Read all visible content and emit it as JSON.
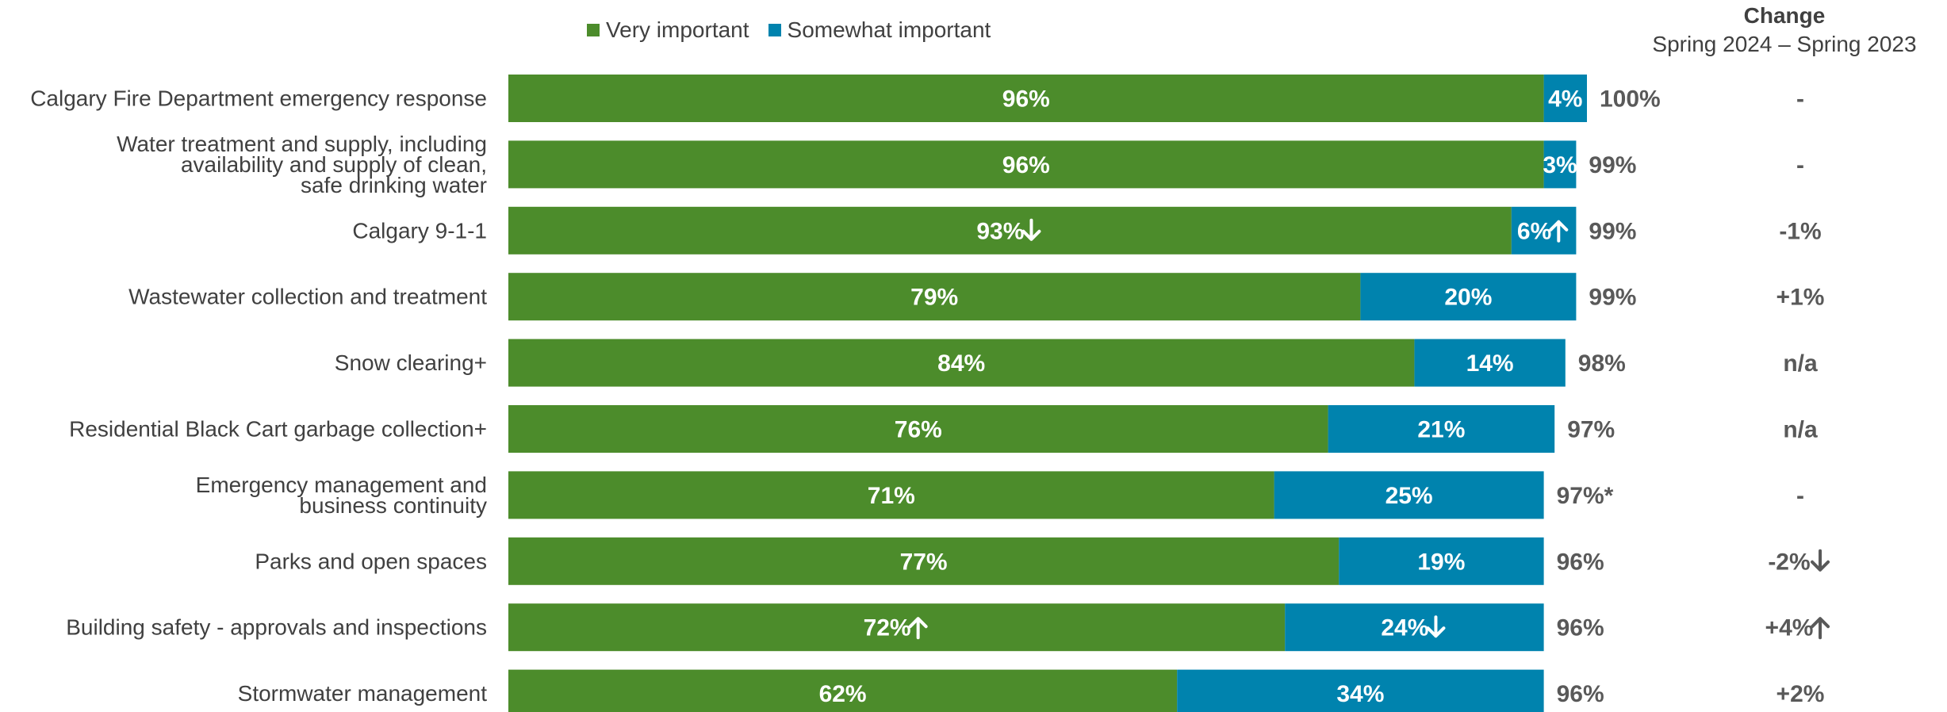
{
  "legend": [
    {
      "label": "Very important",
      "color": "#4C8C2B"
    },
    {
      "label": "Somewhat important",
      "color": "#0083AE"
    }
  ],
  "change_header": {
    "title": "Change",
    "subtitle": "Spring 2024 – Spring 2023"
  },
  "chart_data": {
    "type": "bar",
    "orientation": "horizontal",
    "stacked": true,
    "xlim": [
      0,
      100
    ],
    "categories": [
      "Calgary Fire Department emergency response",
      "Water treatment and supply, including availability and supply of clean, safe drinking water",
      "Calgary 9-1-1",
      "Wastewater collection and treatment",
      "Snow clearing+",
      "Residential Black Cart garbage collection+",
      "Emergency management and business continuity",
      "Parks and open spaces",
      "Building safety - approvals and inspections",
      "Stormwater management"
    ],
    "category_label_lines": [
      [
        "Calgary Fire Department emergency response"
      ],
      [
        "Water treatment and supply, including",
        "availability and supply of clean,",
        "safe drinking water"
      ],
      [
        "Calgary 9-1-1"
      ],
      [
        "Wastewater collection and treatment"
      ],
      [
        "Snow clearing+"
      ],
      [
        "Residential Black Cart garbage collection+"
      ],
      [
        "Emergency management and",
        "business continuity"
      ],
      [
        "Parks and open spaces"
      ],
      [
        "Building safety - approvals and inspections"
      ],
      [
        "Stormwater management"
      ]
    ],
    "series": [
      {
        "name": "Very important",
        "color": "#4C8C2B",
        "values": [
          96,
          96,
          93,
          79,
          84,
          76,
          71,
          77,
          72,
          62
        ],
        "labels": [
          "96%",
          "96%",
          "93%",
          "79%",
          "84%",
          "76%",
          "71%",
          "77%",
          "72%",
          "62%"
        ],
        "sig": [
          "",
          "",
          "down",
          "",
          "",
          "",
          "",
          "",
          "up",
          ""
        ]
      },
      {
        "name": "Somewhat important",
        "color": "#0083AE",
        "values": [
          4,
          3,
          6,
          20,
          14,
          21,
          25,
          19,
          24,
          34
        ],
        "labels": [
          "4%",
          "3%",
          "6%",
          "20%",
          "14%",
          "21%",
          "25%",
          "19%",
          "24%",
          "34%"
        ],
        "sig": [
          "",
          "",
          "up",
          "",
          "",
          "",
          "",
          "",
          "down",
          ""
        ]
      }
    ],
    "totals": [
      "100%",
      "99%",
      "99%",
      "99%",
      "98%",
      "97%",
      "97%*",
      "96%",
      "96%",
      "96%"
    ],
    "change": [
      "-",
      "-",
      "-1%",
      "+1%",
      "n/a",
      "n/a",
      "-",
      "-2%",
      "+4%",
      "+2%"
    ],
    "change_sig": [
      "",
      "",
      "",
      "",
      "",
      "",
      "",
      "down",
      "up",
      ""
    ]
  }
}
